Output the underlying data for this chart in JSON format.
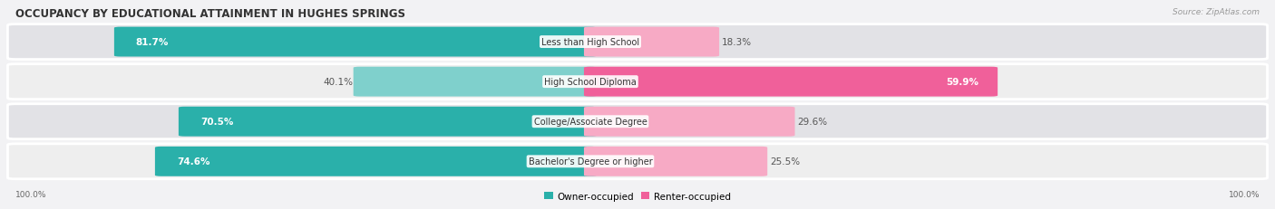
{
  "title": "OCCUPANCY BY EDUCATIONAL ATTAINMENT IN HUGHES SPRINGS",
  "source": "Source: ZipAtlas.com",
  "categories": [
    "Less than High School",
    "High School Diploma",
    "College/Associate Degree",
    "Bachelor's Degree or higher"
  ],
  "owner_pct": [
    81.7,
    40.1,
    70.5,
    74.6
  ],
  "renter_pct": [
    18.3,
    59.9,
    29.6,
    25.5
  ],
  "owner_color_dark": "#2ab0aa",
  "owner_color_light": "#7fd0cc",
  "renter_color_dark": "#f0609a",
  "renter_color_light": "#f7aac5",
  "row_bg_dark": "#e2e2e6",
  "row_bg_light": "#eeeeee",
  "title_fontsize": 8.5,
  "source_fontsize": 6.5,
  "bar_label_fontsize": 7.5,
  "cat_label_fontsize": 7.0,
  "axis_label_fontsize": 6.5,
  "legend_fontsize": 7.5
}
